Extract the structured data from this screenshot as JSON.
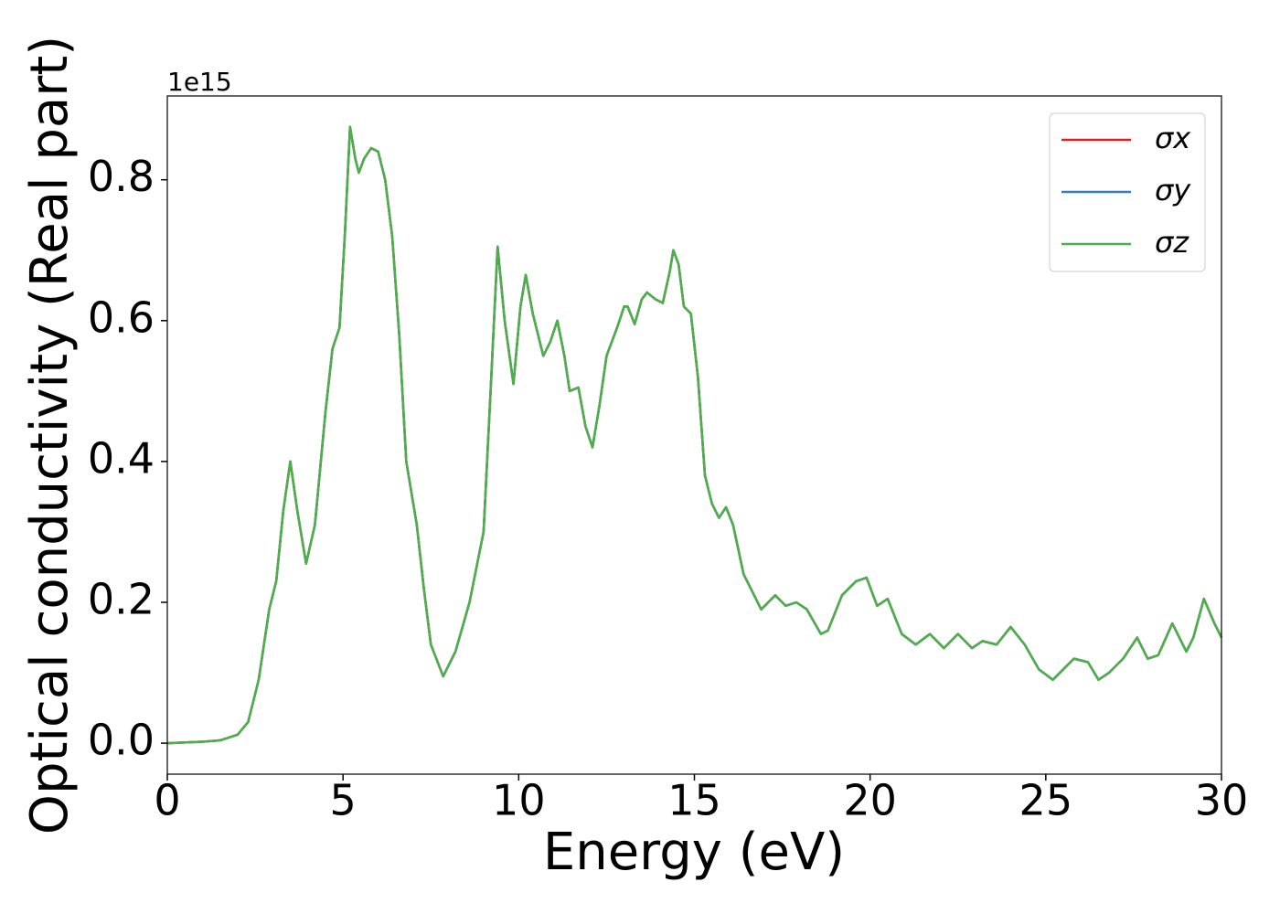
{
  "chart_data": {
    "type": "line",
    "xlabel": "Energy (eV)",
    "ylabel": "Optical conductivity (Real part)",
    "y_offset_label": "1e15",
    "x": [
      0,
      1,
      1.5,
      2,
      2.3,
      2.6,
      2.9,
      3.1,
      3.3,
      3.5,
      3.7,
      3.95,
      4.2,
      4.5,
      4.7,
      4.9,
      5.05,
      5.2,
      5.35,
      5.45,
      5.6,
      5.8,
      6.0,
      6.2,
      6.4,
      6.6,
      6.8,
      7.1,
      7.3,
      7.5,
      7.85,
      8.2,
      8.6,
      9.0,
      9.2,
      9.4,
      9.6,
      9.85,
      10.05,
      10.2,
      10.4,
      10.7,
      10.9,
      11.1,
      11.3,
      11.45,
      11.7,
      11.9,
      12.1,
      12.3,
      12.5,
      12.8,
      13.0,
      13.1,
      13.3,
      13.5,
      13.65,
      13.9,
      14.1,
      14.3,
      14.4,
      14.55,
      14.7,
      14.9,
      15.1,
      15.3,
      15.5,
      15.7,
      15.9,
      16.1,
      16.4,
      16.6,
      16.9,
      17.3,
      17.6,
      17.9,
      18.2,
      18.6,
      18.8,
      19.2,
      19.6,
      19.9,
      20.2,
      20.5,
      20.9,
      21.3,
      21.7,
      22.1,
      22.5,
      22.9,
      23.2,
      23.6,
      24.0,
      24.4,
      24.8,
      25.2,
      25.5,
      25.8,
      26.2,
      26.5,
      26.8,
      27.2,
      27.6,
      27.9,
      28.2,
      28.6,
      29.0,
      29.2,
      29.5,
      29.8,
      30
    ],
    "series": [
      {
        "name": "σx",
        "color": "#e41a1c",
        "values": [
          0,
          0.002,
          0.004,
          0.012,
          0.03,
          0.09,
          0.19,
          0.23,
          0.33,
          0.4,
          0.33,
          0.255,
          0.31,
          0.47,
          0.56,
          0.59,
          0.72,
          0.875,
          0.83,
          0.81,
          0.83,
          0.845,
          0.84,
          0.8,
          0.72,
          0.58,
          0.4,
          0.31,
          0.22,
          0.14,
          0.095,
          0.13,
          0.2,
          0.3,
          0.5,
          0.705,
          0.6,
          0.51,
          0.62,
          0.665,
          0.61,
          0.55,
          0.57,
          0.6,
          0.55,
          0.5,
          0.505,
          0.45,
          0.42,
          0.48,
          0.55,
          0.59,
          0.62,
          0.62,
          0.595,
          0.63,
          0.64,
          0.63,
          0.625,
          0.67,
          0.7,
          0.68,
          0.62,
          0.61,
          0.52,
          0.38,
          0.34,
          0.32,
          0.335,
          0.31,
          0.24,
          0.22,
          0.19,
          0.21,
          0.195,
          0.2,
          0.19,
          0.155,
          0.16,
          0.21,
          0.23,
          0.235,
          0.195,
          0.205,
          0.155,
          0.14,
          0.155,
          0.135,
          0.155,
          0.135,
          0.145,
          0.14,
          0.165,
          0.14,
          0.105,
          0.09,
          0.105,
          0.12,
          0.115,
          0.09,
          0.1,
          0.12,
          0.15,
          0.12,
          0.125,
          0.17,
          0.13,
          0.15,
          0.205,
          0.17,
          0.15
        ]
      },
      {
        "name": "σy",
        "color": "#377eb8",
        "values": [
          0,
          0.002,
          0.004,
          0.012,
          0.03,
          0.09,
          0.19,
          0.23,
          0.33,
          0.4,
          0.33,
          0.255,
          0.31,
          0.47,
          0.56,
          0.59,
          0.72,
          0.875,
          0.83,
          0.81,
          0.83,
          0.845,
          0.84,
          0.8,
          0.72,
          0.58,
          0.4,
          0.31,
          0.22,
          0.14,
          0.095,
          0.13,
          0.2,
          0.3,
          0.5,
          0.705,
          0.6,
          0.51,
          0.62,
          0.665,
          0.61,
          0.55,
          0.57,
          0.6,
          0.55,
          0.5,
          0.505,
          0.45,
          0.42,
          0.48,
          0.55,
          0.59,
          0.62,
          0.62,
          0.595,
          0.63,
          0.64,
          0.63,
          0.625,
          0.67,
          0.7,
          0.68,
          0.62,
          0.61,
          0.52,
          0.38,
          0.34,
          0.32,
          0.335,
          0.31,
          0.24,
          0.22,
          0.19,
          0.21,
          0.195,
          0.2,
          0.19,
          0.155,
          0.16,
          0.21,
          0.23,
          0.235,
          0.195,
          0.205,
          0.155,
          0.14,
          0.155,
          0.135,
          0.155,
          0.135,
          0.145,
          0.14,
          0.165,
          0.14,
          0.105,
          0.09,
          0.105,
          0.12,
          0.115,
          0.09,
          0.1,
          0.12,
          0.15,
          0.12,
          0.125,
          0.17,
          0.13,
          0.15,
          0.205,
          0.17,
          0.15
        ]
      },
      {
        "name": "σz",
        "color": "#4daf4a",
        "values": [
          0,
          0.002,
          0.004,
          0.012,
          0.03,
          0.09,
          0.19,
          0.23,
          0.33,
          0.4,
          0.33,
          0.255,
          0.31,
          0.47,
          0.56,
          0.59,
          0.72,
          0.875,
          0.83,
          0.81,
          0.83,
          0.845,
          0.84,
          0.8,
          0.72,
          0.58,
          0.4,
          0.31,
          0.22,
          0.14,
          0.095,
          0.13,
          0.2,
          0.3,
          0.5,
          0.705,
          0.6,
          0.51,
          0.62,
          0.665,
          0.61,
          0.55,
          0.57,
          0.6,
          0.55,
          0.5,
          0.505,
          0.45,
          0.42,
          0.48,
          0.55,
          0.59,
          0.62,
          0.62,
          0.595,
          0.63,
          0.64,
          0.63,
          0.625,
          0.67,
          0.7,
          0.68,
          0.62,
          0.61,
          0.52,
          0.38,
          0.34,
          0.32,
          0.335,
          0.31,
          0.24,
          0.22,
          0.19,
          0.21,
          0.195,
          0.2,
          0.19,
          0.155,
          0.16,
          0.21,
          0.23,
          0.235,
          0.195,
          0.205,
          0.155,
          0.14,
          0.155,
          0.135,
          0.155,
          0.135,
          0.145,
          0.14,
          0.165,
          0.14,
          0.105,
          0.09,
          0.105,
          0.12,
          0.115,
          0.09,
          0.1,
          0.12,
          0.15,
          0.12,
          0.125,
          0.17,
          0.13,
          0.15,
          0.205,
          0.17,
          0.15
        ]
      }
    ],
    "xlim": [
      0,
      30
    ],
    "xticks": [
      0,
      5,
      10,
      15,
      20,
      25,
      30
    ],
    "ylim": [
      -0.044,
      0.919
    ],
    "yticks": [
      {
        "value": 0,
        "label": "0.0"
      },
      0.2,
      0.4,
      0.6,
      0.8
    ],
    "grid": false,
    "legend": "upper right"
  }
}
